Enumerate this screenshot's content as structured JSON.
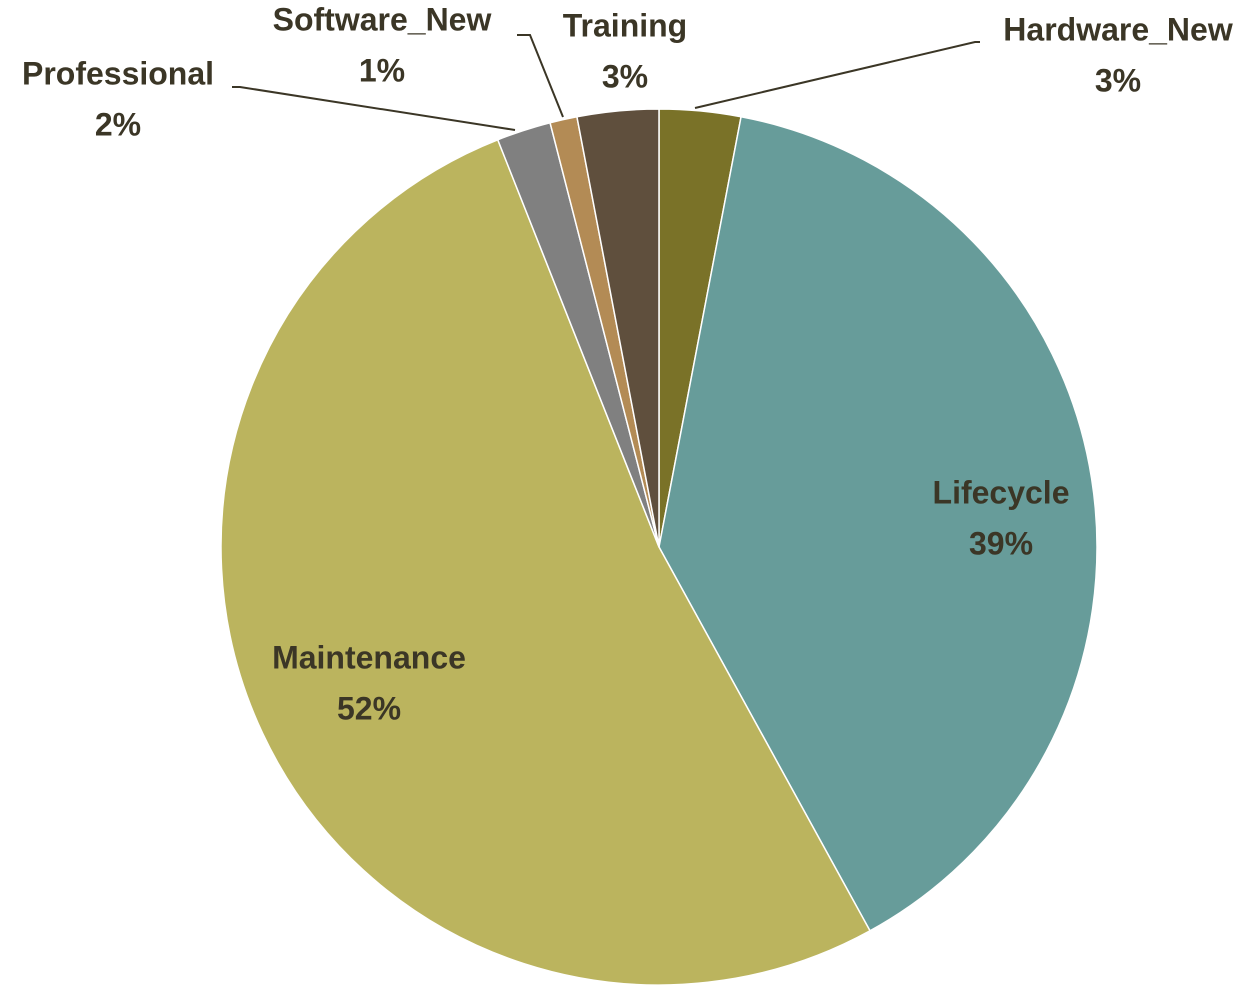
{
  "chart_data": {
    "type": "pie",
    "categories": [
      "Hardware_New",
      "Lifecycle",
      "Maintenance",
      "Professional",
      "Software_New",
      "Training"
    ],
    "values": [
      3,
      39,
      52,
      2,
      1,
      3
    ],
    "value_labels": [
      "3%",
      "39%",
      "52%",
      "2%",
      "1%",
      "3%"
    ],
    "colors": [
      "#7a7228",
      "#679c9a",
      "#bbb45e",
      "#808080",
      "#b38b55",
      "#5f4f3d"
    ]
  }
}
